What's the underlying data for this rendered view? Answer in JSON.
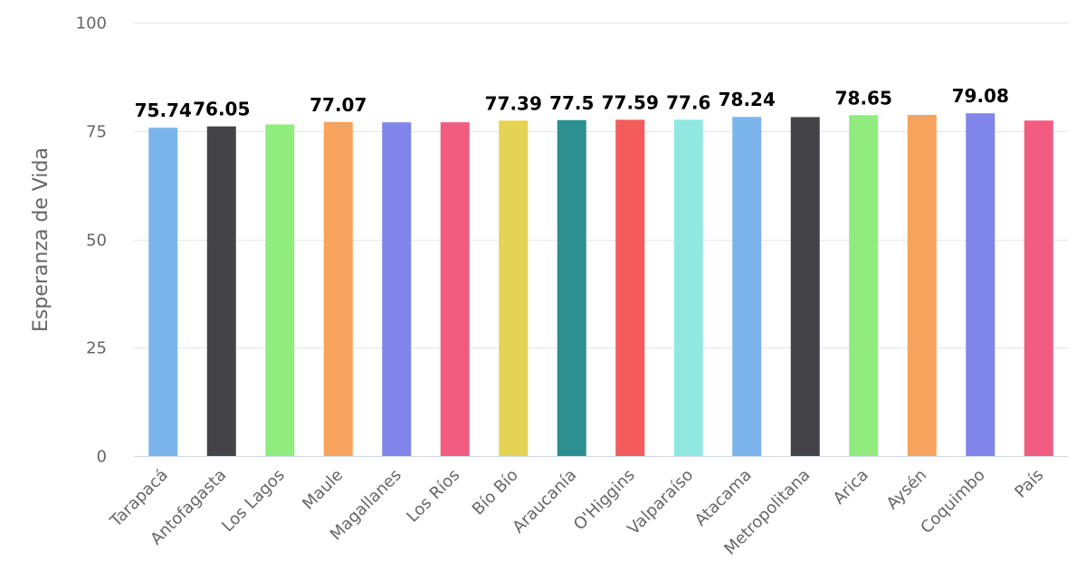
{
  "chart_data": {
    "type": "bar",
    "ylabel": "Esperanza de Vida",
    "ylim": [
      0,
      100
    ],
    "yticks": [
      0,
      25,
      50,
      75,
      100
    ],
    "grid": true,
    "legend": "none",
    "categories": [
      "Tarapacá",
      "Antofagasta",
      "Los Lagos",
      "Maule",
      "Magallanes",
      "Los Ríos",
      "Bío Bío",
      "Araucanía",
      "O'Higgins",
      "Valparaíso",
      "Atacama",
      "Metropolitana",
      "Arica",
      "Aysén",
      "Coquimbo",
      "País"
    ],
    "values": [
      75.74,
      76.05,
      76.5,
      77.07,
      77.0,
      77.0,
      77.39,
      77.5,
      77.59,
      77.6,
      78.24,
      78.2,
      78.65,
      78.7,
      79.08,
      77.4
    ],
    "data_labels": [
      "75.74",
      "76.05",
      null,
      "77.07",
      null,
      null,
      "77.39",
      "77.5",
      "77.59",
      "77.6",
      "78.24",
      null,
      "78.65",
      null,
      "79.08",
      null
    ],
    "colors": [
      "#7cb5ec",
      "#434348",
      "#90ed7d",
      "#f7a35c",
      "#8085e9",
      "#f15c80",
      "#e4d354",
      "#2b908f",
      "#f45b5b",
      "#91e8e1",
      "#7cb5ec",
      "#434348",
      "#90ed7d",
      "#f7a35c",
      "#8085e9",
      "#f15c80"
    ]
  }
}
